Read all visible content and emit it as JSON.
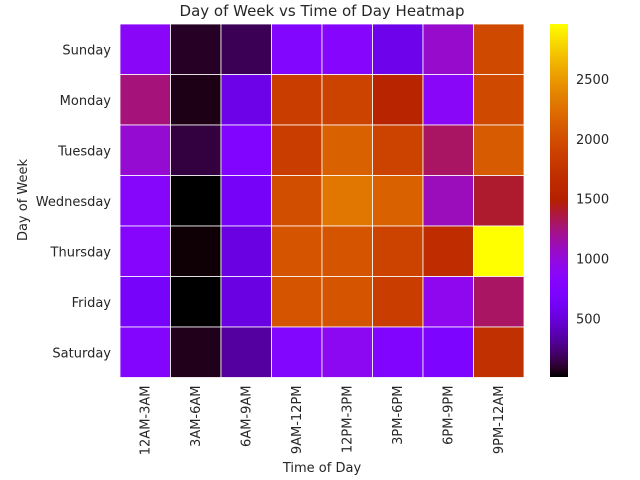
{
  "chart_data": {
    "type": "heatmap",
    "title": "Day of Week vs Time of Day Heatmap",
    "xlabel": "Time of Day",
    "ylabel": "Day of Week",
    "x_categories": [
      "12AM-3AM",
      "3AM-6AM",
      "6AM-9AM",
      "9AM-12PM",
      "12PM-3PM",
      "3PM-6PM",
      "6PM-9PM",
      "9PM-12AM"
    ],
    "y_categories": [
      "Sunday",
      "Monday",
      "Tuesday",
      "Wednesday",
      "Thursday",
      "Friday",
      "Saturday"
    ],
    "values": [
      [
        860,
        80,
        170,
        780,
        820,
        560,
        1050,
        1950
      ],
      [
        1250,
        50,
        550,
        1850,
        1900,
        1550,
        860,
        1950
      ],
      [
        1030,
        130,
        750,
        1850,
        2150,
        1900,
        1300,
        2100
      ],
      [
        830,
        10,
        640,
        2000,
        2300,
        2150,
        1100,
        1400
      ],
      [
        820,
        20,
        520,
        2050,
        2050,
        1900,
        1650,
        2960
      ],
      [
        650,
        10,
        520,
        2050,
        2050,
        1850,
        920,
        1300
      ],
      [
        800,
        60,
        330,
        780,
        900,
        770,
        720,
        1700
      ]
    ],
    "colorbar": {
      "colormap": "gnuplot",
      "vmin": 10,
      "vmax": 2960,
      "ticks": [
        500,
        1000,
        1500,
        2000,
        2500
      ]
    },
    "grid": false
  }
}
